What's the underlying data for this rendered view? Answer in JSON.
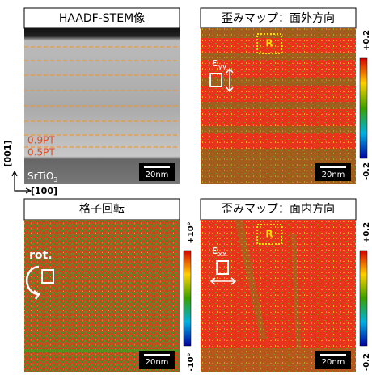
{
  "panels": [
    {
      "title": "HAADF-STEM像",
      "scale_bar": "20nm",
      "labels": [
        "0.9PT",
        "0.5PT"
      ],
      "substrate": {
        "base": "SrTiO",
        "sub": "3"
      }
    },
    {
      "title": "歪みマップ：面外方向",
      "scale_bar": "20nm",
      "region": "R",
      "symbol": {
        "base": "ε",
        "sub": "yy"
      },
      "colorbar": {
        "top": "+0.2",
        "bottom": "-0.2"
      }
    },
    {
      "title": "格子回転",
      "scale_bar": "20nm",
      "symbol": {
        "base": "rot."
      },
      "colorbar": {
        "top": "+10°",
        "bottom": "-10°"
      }
    },
    {
      "title": "歪みマップ：面内方向",
      "scale_bar": "20nm",
      "region": "R",
      "symbol": {
        "base": "ε",
        "sub": "xx"
      },
      "colorbar": {
        "top": "+0.2",
        "bottom": "-0.2"
      }
    }
  ],
  "axes": {
    "vertical": "[001]",
    "horizontal": "[100]"
  }
}
